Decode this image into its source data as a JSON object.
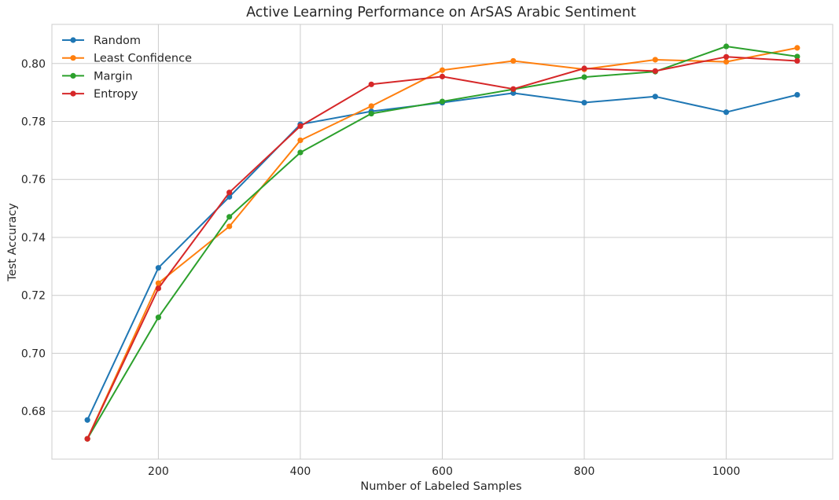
{
  "chart_data": {
    "type": "line",
    "title": "Active Learning Performance on ArSAS Arabic Sentiment",
    "xlabel": "Number of Labeled Samples",
    "ylabel": "Test Accuracy",
    "x": [
      100,
      200,
      300,
      400,
      500,
      600,
      700,
      800,
      900,
      1000,
      1100
    ],
    "xlim": [
      50,
      1150
    ],
    "ylim": [
      0.6635,
      0.8135
    ],
    "xticks": [
      200,
      400,
      600,
      800,
      1000
    ],
    "xtick_labels": [
      "200",
      "400",
      "600",
      "800",
      "1000"
    ],
    "yticks": [
      0.68,
      0.7,
      0.72,
      0.74,
      0.76,
      0.78,
      0.8
    ],
    "ytick_labels": [
      "0.68",
      "0.70",
      "0.72",
      "0.74",
      "0.76",
      "0.78",
      "0.80"
    ],
    "grid": true,
    "legend_position": "upper-left",
    "series": [
      {
        "name": "Random",
        "color": "#1f77b4",
        "values": [
          0.677,
          0.7295,
          0.754,
          0.779,
          0.7835,
          0.7865,
          0.7898,
          0.7865,
          0.7886,
          0.7832,
          0.7892
        ]
      },
      {
        "name": "Least Confidence",
        "color": "#ff7f0e",
        "values": [
          0.6705,
          0.7242,
          0.7438,
          0.7735,
          0.7853,
          0.7977,
          0.8009,
          0.798,
          0.8013,
          0.8006,
          0.8054
        ]
      },
      {
        "name": "Margin",
        "color": "#2ca02c",
        "values": [
          0.6705,
          0.7124,
          0.7471,
          0.7693,
          0.7827,
          0.7869,
          0.7911,
          0.7953,
          0.7972,
          0.8059,
          0.8024
        ]
      },
      {
        "name": "Entropy",
        "color": "#d62728",
        "values": [
          0.6705,
          0.7224,
          0.7555,
          0.7784,
          0.7928,
          0.7955,
          0.7912,
          0.7983,
          0.7974,
          0.8023,
          0.8009
        ]
      }
    ]
  }
}
